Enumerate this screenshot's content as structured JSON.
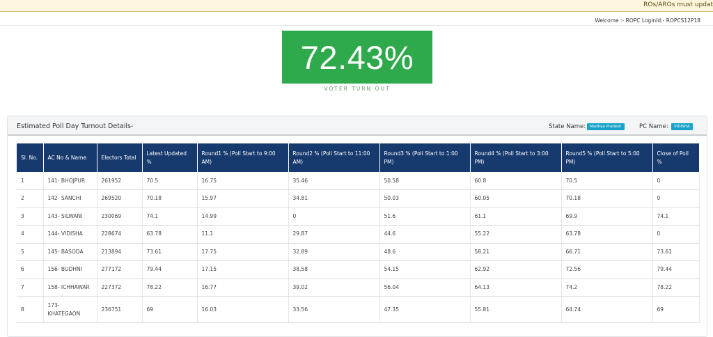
{
  "notice": {
    "text": "ROs/AROs must updat"
  },
  "welcome": {
    "text": "Welcome :- ROPC LoginId:- ROPCS12P18"
  },
  "turnout": {
    "value": "72.43%",
    "label": "VOTER TURN OUT"
  },
  "card": {
    "title": "Estimated Poll Day Turnout Details-",
    "state_label": "State Name:",
    "state_value": "Madhya Pradesh",
    "pc_label": "PC Name:",
    "pc_value": "VIDISHA"
  },
  "table": {
    "headers": [
      "Sl. No.",
      "AC No & Name",
      "Electors Total",
      "Latest Updated %",
      "Round1 % (Poll Start to 9:00 AM)",
      "Round2 % (Poll Start to 11:00 AM)",
      "Round3 % (Poll Start to 1:00 PM)",
      "Round4 % (Poll Start to 3:00 PM)",
      "Round5 % (Poll Start to 5:00 PM)",
      "Close of Poll %"
    ],
    "rows": [
      [
        "1",
        "141- BHOJPUR",
        "261952",
        "70.5",
        "16.75",
        "35.46",
        "50.58",
        "60.8",
        "70.5",
        "0"
      ],
      [
        "2",
        "142- SANCHI",
        "269520",
        "70.18",
        "15.97",
        "34.81",
        "50.03",
        "60.05",
        "70.18",
        "0"
      ],
      [
        "3",
        "143- SILWANI",
        "230069",
        "74.1",
        "14.99",
        "0",
        "51.6",
        "61.1",
        "69.9",
        "74.1"
      ],
      [
        "4",
        "144- VIDISHA",
        "228674",
        "63.78",
        "11.1",
        "29.87",
        "44.6",
        "55.22",
        "63.78",
        "0"
      ],
      [
        "5",
        "145- BASODA",
        "213894",
        "73.61",
        "17.75",
        "32.89",
        "48.6",
        "58.21",
        "66.71",
        "73.61"
      ],
      [
        "6",
        "156- BUDHNI",
        "277172",
        "79.44",
        "17.15",
        "38.58",
        "54.15",
        "62.92",
        "72.56",
        "79.44"
      ],
      [
        "7",
        "158- ICHHAWAR",
        "227372",
        "78.22",
        "16.77",
        "39.02",
        "56.04",
        "64.13",
        "74.2",
        "78.22"
      ],
      [
        "8",
        "173- KHATEGAON",
        "236751",
        "69",
        "16.03",
        "33.56",
        "47.35",
        "55.81",
        "64.74",
        "69"
      ]
    ]
  }
}
